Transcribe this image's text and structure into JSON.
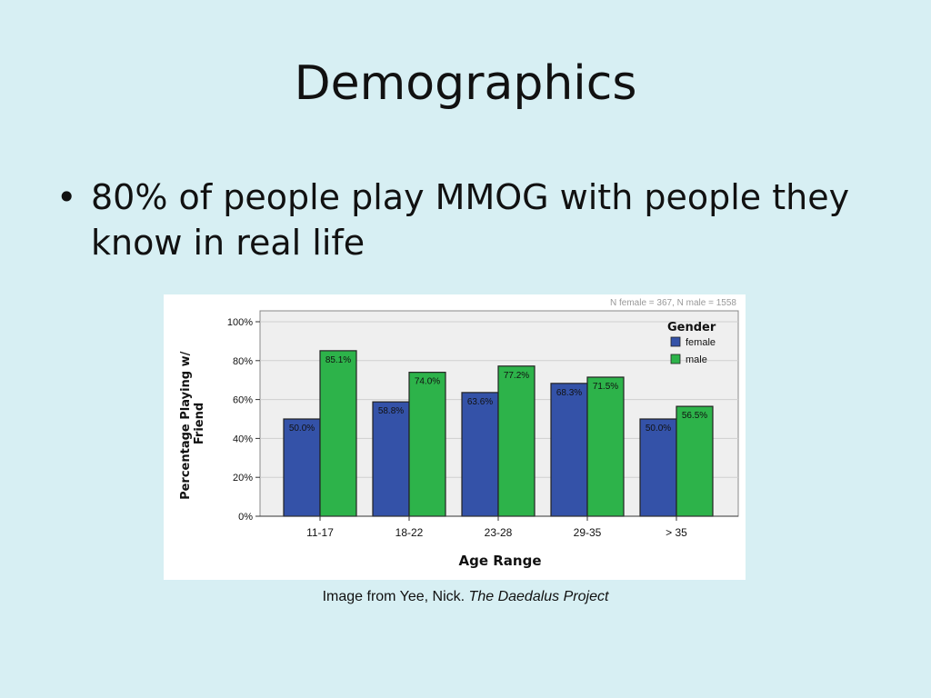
{
  "slide": {
    "title": "Demographics",
    "bullet": "80% of people play MMOG with people they know in real life",
    "bullet_icon": "bullet-dot",
    "caption_prefix": "Image from Yee, Nick. ",
    "caption_source": "The Daedalus Project"
  },
  "colors": {
    "background": "#d7eff3",
    "female": "#3452a8",
    "male": "#2db34a",
    "plot_bg": "#efefef"
  },
  "chart_data": {
    "type": "bar",
    "categories": [
      "11-17",
      "18-22",
      "23-28",
      "29-35",
      "> 35"
    ],
    "series": [
      {
        "name": "female",
        "values": [
          50.0,
          58.8,
          63.6,
          68.3,
          50.0
        ],
        "labels": [
          "50.0%",
          "58.8%",
          "63.6%",
          "68.3%",
          "50.0%"
        ]
      },
      {
        "name": "male",
        "values": [
          85.1,
          74.0,
          77.2,
          71.5,
          56.5
        ],
        "labels": [
          "85.1%",
          "74.0%",
          "77.2%",
          "71.5%",
          "56.5%"
        ]
      }
    ],
    "xlabel": "Age Range",
    "ylabel": "Percentage Playing w/ Friend",
    "ylabel_lines": [
      "Percentage Playing w/",
      "Friend"
    ],
    "yticks": [
      "0%",
      "20%",
      "40%",
      "60%",
      "80%",
      "100%"
    ],
    "ylim": [
      0,
      100
    ],
    "legend_title": "Gender",
    "legend_position": "top-right",
    "note": "N female = 367, N male = 1558",
    "grid": true
  }
}
